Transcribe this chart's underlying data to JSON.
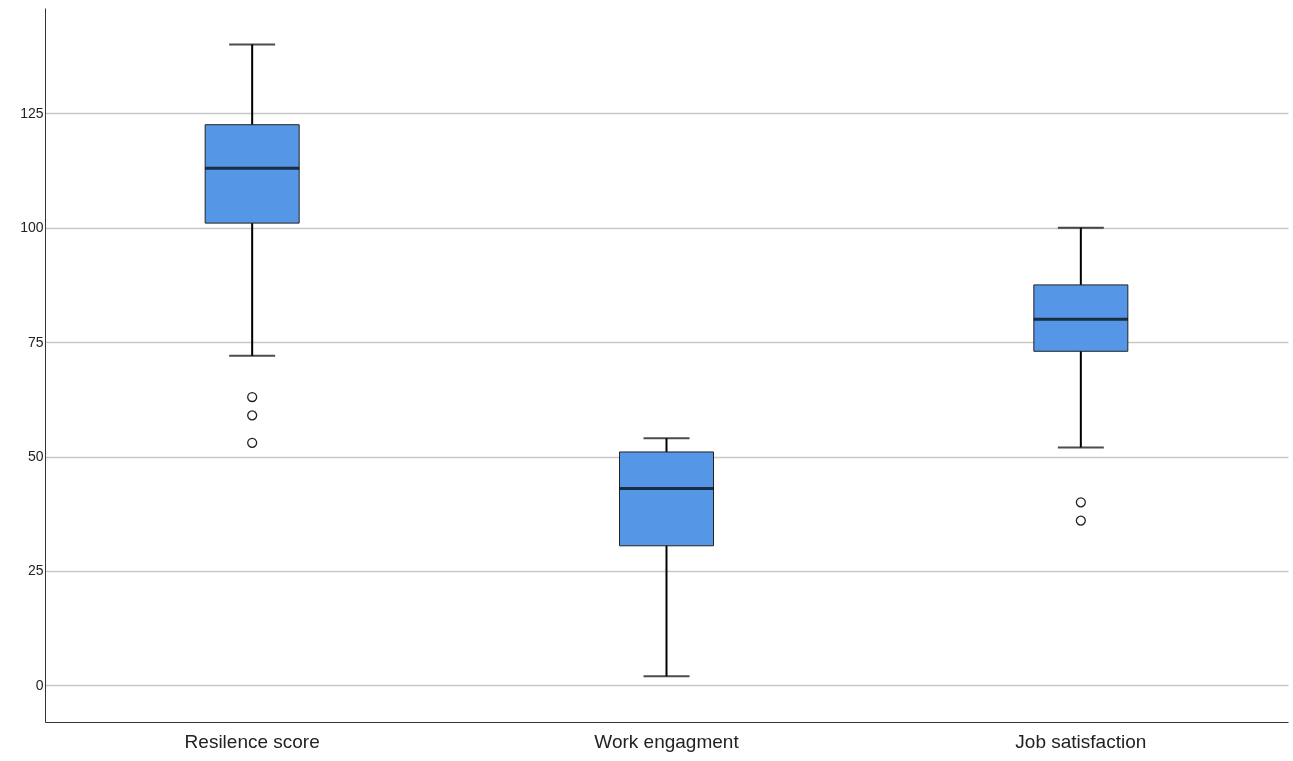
{
  "chart_data": {
    "type": "box",
    "categories": [
      "Resilence score",
      "Work engagment",
      "Job satisfaction"
    ],
    "color": "#5596e6",
    "boxes": [
      {
        "low": 72,
        "q1": 101,
        "median": 113,
        "q3": 122.5,
        "high": 140,
        "outliers": [
          63,
          59,
          53
        ]
      },
      {
        "low": 2,
        "q1": 30.5,
        "median": 43,
        "q3": 51,
        "high": 54
      },
      {
        "low": 52,
        "q1": 73,
        "median": 80,
        "q3": 87.5,
        "high": 100,
        "outliers": [
          40,
          36
        ]
      }
    ],
    "ylim": [
      -8,
      148
    ],
    "yticks": [
      0,
      25,
      50,
      75,
      100,
      125
    ],
    "grid": "y"
  }
}
